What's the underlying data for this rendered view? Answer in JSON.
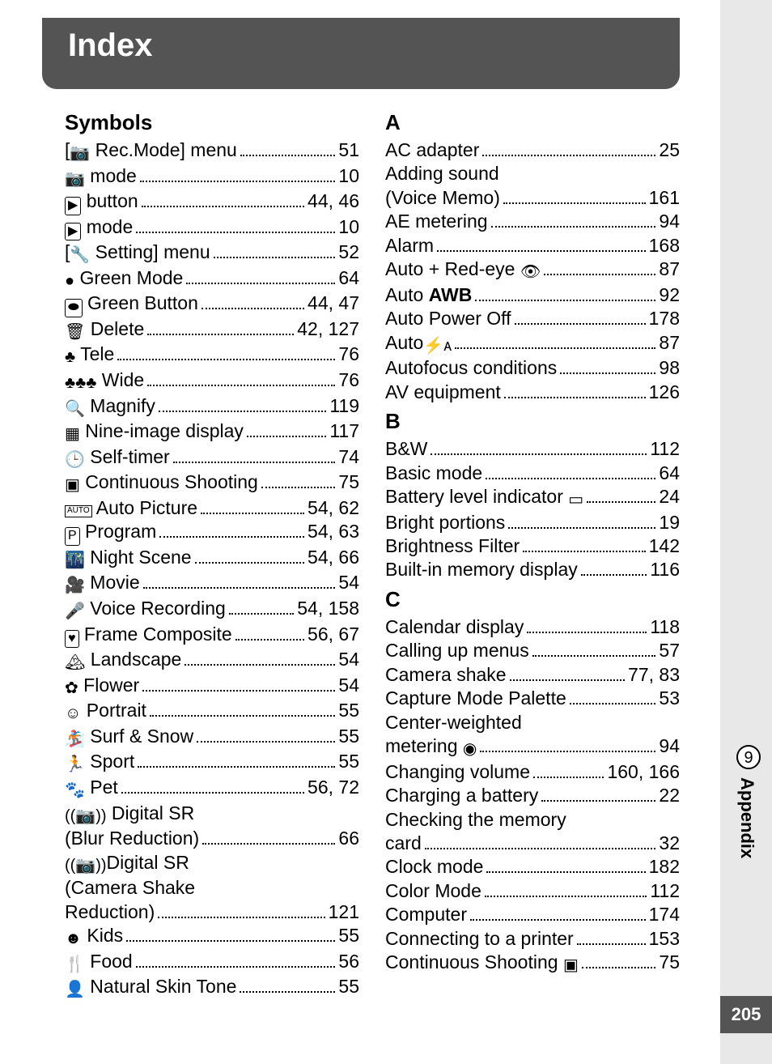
{
  "header": {
    "title": "Index"
  },
  "page_number": "205",
  "side": {
    "chapter_num": "9",
    "chapter_label": "Appendix"
  },
  "left": {
    "sections": [
      {
        "heading": "Symbols",
        "items": [
          {
            "icon": "📷",
            "label": "[ Rec.Mode] menu",
            "pages": "51",
            "icon_before_bracket": true
          },
          {
            "icon": "📷",
            "label": " mode",
            "pages": "10"
          },
          {
            "icon": "▶",
            "label": " button",
            "pages": "44, 46",
            "boxed": true
          },
          {
            "icon": "▶",
            "label": " mode",
            "pages": "10",
            "boxed": true
          },
          {
            "icon": "🔧",
            "label": "[ Setting] menu",
            "pages": "52",
            "icon_before_bracket": true
          },
          {
            "icon": "●",
            "label": " Green Mode",
            "pages": "64"
          },
          {
            "icon": "⬬",
            "label": " Green Button",
            "pages": "44, 47",
            "boxed": true
          },
          {
            "icon": "🗑",
            "label": " Delete",
            "pages": "42, 127"
          },
          {
            "icon": "♣",
            "label": " Tele",
            "pages": "76"
          },
          {
            "icon": "♣♣♣",
            "label": " Wide",
            "pages": "76"
          },
          {
            "icon": "🔍",
            "label": " Magnify",
            "pages": "119"
          },
          {
            "icon": "▦",
            "label": " Nine-image display",
            "pages": "117"
          },
          {
            "icon": "🕒",
            "label": " Self-timer",
            "pages": "74"
          },
          {
            "icon": "▣",
            "label": " Continuous Shooting",
            "pages": "75"
          },
          {
            "icon": "AUTO",
            "label": " Auto Picture",
            "pages": "54, 62",
            "small_box": true
          },
          {
            "icon": "P",
            "label": " Program",
            "pages": "54, 63",
            "boxed": true
          },
          {
            "icon": "🌃",
            "label": " Night Scene",
            "pages": "54, 66"
          },
          {
            "icon": "🎥",
            "label": " Movie",
            "pages": "54"
          },
          {
            "icon": "🎤",
            "label": " Voice Recording",
            "pages": "54, 158"
          },
          {
            "icon": "♥",
            "label": " Frame Composite",
            "pages": "56, 67",
            "boxed": true
          },
          {
            "icon": "🏔",
            "label": " Landscape",
            "pages": "54"
          },
          {
            "icon": "✿",
            "label": " Flower",
            "pages": "54"
          },
          {
            "icon": "☺",
            "label": " Portrait",
            "pages": "55"
          },
          {
            "icon": "🏂",
            "label": " Surf & Snow",
            "pages": "55"
          },
          {
            "icon": "🏃",
            "label": " Sport",
            "pages": "55"
          },
          {
            "icon": "🐾",
            "label": " Pet",
            "pages": "56, 72"
          },
          {
            "icon": "((📷))",
            "label": " Digital SR",
            "pages": "",
            "no_dots": true
          },
          {
            "icon": "",
            "label": "(Blur Reduction)",
            "pages": "66"
          },
          {
            "icon": "((📷))",
            "label": "Digital SR",
            "pages": "",
            "no_dots": true
          },
          {
            "icon": "",
            "label": "(Camera Shake",
            "pages": "",
            "no_dots": true
          },
          {
            "icon": "",
            "label": " Reduction)",
            "pages": "121"
          },
          {
            "icon": "☻",
            "label": " Kids",
            "pages": "55"
          },
          {
            "icon": "🍴",
            "label": " Food",
            "pages": "56"
          },
          {
            "icon": "👤",
            "label": " Natural Skin Tone",
            "pages": "55"
          }
        ]
      }
    ]
  },
  "right": {
    "sections": [
      {
        "heading": "A",
        "items": [
          {
            "label": "AC adapter",
            "pages": "25"
          },
          {
            "label": "Adding sound",
            "pages": "",
            "no_dots": true
          },
          {
            "label": "(Voice Memo)",
            "pages": "161"
          },
          {
            "label": "AE metering",
            "pages": "94"
          },
          {
            "label": "Alarm",
            "pages": "168"
          },
          {
            "label": "Auto + Red-eye ",
            "trailing_icon": "👁",
            "pages": "87"
          },
          {
            "label": "Auto ",
            "awb": "AWB",
            "pages": "92"
          },
          {
            "label": "Auto Power Off",
            "pages": "178"
          },
          {
            "label": "Auto",
            "trailing_icon": "⚡ᴀ",
            "pages": "87"
          },
          {
            "label": "Autofocus conditions",
            "pages": "98"
          },
          {
            "label": "AV equipment",
            "pages": "126"
          }
        ]
      },
      {
        "heading": "B",
        "items": [
          {
            "label": "B&W",
            "pages": "112"
          },
          {
            "label": "Basic mode",
            "pages": "64"
          },
          {
            "label": "Battery level indicator ",
            "trailing_icon": "▭",
            "pages": "24"
          },
          {
            "label": "Bright portions",
            "pages": "19"
          },
          {
            "label": "Brightness Filter",
            "pages": "142"
          },
          {
            "label": "Built-in memory display",
            "pages": "116"
          }
        ]
      },
      {
        "heading": "C",
        "items": [
          {
            "label": "Calendar display",
            "pages": "118"
          },
          {
            "label": "Calling up menus",
            "pages": "57"
          },
          {
            "label": "Camera shake",
            "pages": "77, 83"
          },
          {
            "label": "Capture Mode Palette",
            "pages": "53"
          },
          {
            "label": "Center-weighted",
            "pages": "",
            "no_dots": true
          },
          {
            "label": "metering ",
            "trailing_icon": "◉",
            "pages": "94"
          },
          {
            "label": "Changing volume",
            "pages": "160, 166"
          },
          {
            "label": "Charging a battery",
            "pages": "22"
          },
          {
            "label": "Checking the memory",
            "pages": "",
            "no_dots": true
          },
          {
            "label": "card",
            "pages": "32"
          },
          {
            "label": "Clock mode",
            "pages": "182"
          },
          {
            "label": "Color Mode",
            "pages": "112"
          },
          {
            "label": "Computer",
            "pages": "174"
          },
          {
            "label": "Connecting to a printer",
            "pages": "153"
          },
          {
            "label": "Continuous Shooting ",
            "trailing_icon": "▣",
            "pages": "75"
          }
        ]
      }
    ]
  }
}
